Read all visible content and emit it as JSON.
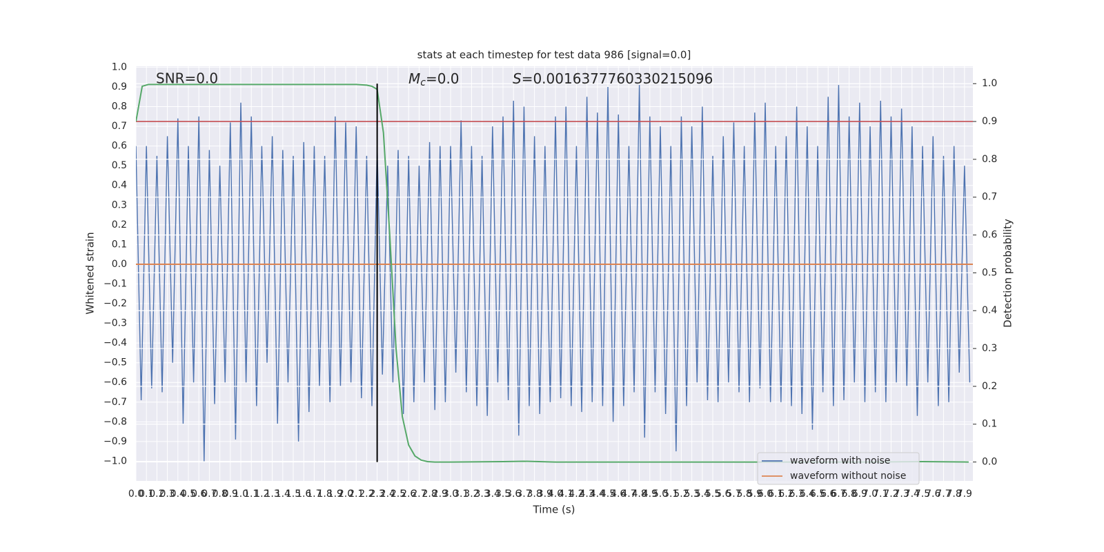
{
  "chart_data": {
    "type": "line",
    "title": "stats at each timestep for test data 986 [signal=0.0]",
    "xlabel": "Time (s)",
    "ylabel": "Whitened strain",
    "y2label": "Detection probability",
    "annotations": [
      {
        "text": "SNR=0.0"
      },
      {
        "symbol": "M",
        "subscript": "c",
        "text": "=0.0"
      },
      {
        "symbol": "S",
        "text": "=0.0016377760330215096"
      }
    ],
    "xlim": [
      0,
      7.98
    ],
    "ylim": [
      -1.1,
      1.005
    ],
    "y2lim": [
      -0.05,
      1.046
    ],
    "grid": true,
    "legend": "lower right",
    "xticks": [
      {
        "value": 0,
        "label": "0.0"
      },
      0.1,
      0.2,
      0.3,
      0.4,
      0.5,
      0.6,
      0.7,
      0.8,
      0.9,
      {
        "value": 1,
        "label": "1.0"
      },
      1.1,
      1.2,
      1.3,
      1.4,
      1.5,
      1.6,
      1.7,
      1.8,
      1.9,
      {
        "value": 2,
        "label": "2.0"
      },
      2.1,
      2.2,
      2.3,
      2.4,
      2.5,
      2.6,
      2.7,
      2.8,
      2.9,
      {
        "value": 3,
        "label": "3.0"
      },
      3.1,
      3.2,
      3.3,
      3.4,
      3.5,
      3.6,
      3.7,
      3.8,
      3.9,
      {
        "value": 4,
        "label": "4.0"
      },
      4.1,
      4.2,
      4.3,
      4.4,
      4.5,
      4.6,
      4.7,
      4.8,
      4.9,
      {
        "value": 5,
        "label": "5.0"
      },
      5.1,
      5.2,
      5.3,
      5.4,
      5.5,
      5.6,
      5.7,
      5.8,
      5.9,
      {
        "value": 6,
        "label": "6.0"
      },
      6.1,
      6.2,
      6.3,
      6.4,
      6.5,
      6.6,
      6.7,
      6.8,
      6.9,
      {
        "value": 7,
        "label": "7.0"
      },
      7.1,
      7.2,
      7.3,
      7.4,
      7.5,
      7.6,
      7.7,
      7.8,
      7.9
    ],
    "yticks": [
      {
        "value": -1,
        "label": "−1.0"
      },
      {
        "value": -0.9,
        "label": "−0.9"
      },
      {
        "value": -0.8,
        "label": "−0.8"
      },
      {
        "value": -0.7,
        "label": "−0.7"
      },
      {
        "value": -0.6,
        "label": "−0.6"
      },
      {
        "value": -0.5,
        "label": "−0.5"
      },
      {
        "value": -0.4,
        "label": "−0.4"
      },
      {
        "value": -0.3,
        "label": "−0.3"
      },
      {
        "value": -0.2,
        "label": "−0.2"
      },
      {
        "value": -0.1,
        "label": "−0.1"
      },
      {
        "value": 0,
        "label": "0.0"
      },
      0.1,
      0.2,
      0.3,
      0.4,
      0.5,
      0.6,
      0.7,
      0.8,
      0.9,
      {
        "value": 1,
        "label": "1.0"
      }
    ],
    "y2ticks": [
      {
        "value": 0,
        "label": "0.0"
      },
      0.1,
      0.2,
      0.3,
      0.4,
      0.5,
      0.6,
      0.7,
      0.8,
      0.9,
      {
        "value": 1,
        "label": "1.0"
      }
    ],
    "series": [
      {
        "name": "waveform with noise",
        "color": "#4c72b0",
        "x": [
          0,
          0.05,
          0.1,
          0.15,
          0.2,
          0.25,
          0.3,
          0.35,
          0.4,
          0.45,
          0.5,
          0.55,
          0.6,
          0.65,
          0.7,
          0.75,
          0.8,
          0.85,
          0.9,
          0.95,
          1,
          1.05,
          1.1,
          1.15,
          1.2,
          1.25,
          1.3,
          1.35,
          1.4,
          1.45,
          1.5,
          1.55,
          1.6,
          1.65,
          1.7,
          1.75,
          1.8,
          1.85,
          1.9,
          1.95,
          2,
          2.05,
          2.1,
          2.15,
          2.2,
          2.25,
          2.3,
          2.35,
          2.4,
          2.45,
          2.5,
          2.55,
          2.6,
          2.65,
          2.7,
          2.75,
          2.8,
          2.85,
          2.9,
          2.95,
          3,
          3.05,
          3.1,
          3.15,
          3.2,
          3.25,
          3.3,
          3.35,
          3.4,
          3.45,
          3.5,
          3.55,
          3.6,
          3.65,
          3.7,
          3.75,
          3.8,
          3.85,
          3.9,
          3.95,
          4,
          4.05,
          4.1,
          4.15,
          4.2,
          4.25,
          4.3,
          4.35,
          4.4,
          4.45,
          4.5,
          4.55,
          4.6,
          4.65,
          4.7,
          4.75,
          4.8,
          4.85,
          4.9,
          4.95,
          5,
          5.05,
          5.1,
          5.15,
          5.2,
          5.25,
          5.3,
          5.35,
          5.4,
          5.45,
          5.5,
          5.55,
          5.6,
          5.65,
          5.7,
          5.75,
          5.8,
          5.85,
          5.9,
          5.95,
          6,
          6.05,
          6.1,
          6.15,
          6.2,
          6.25,
          6.3,
          6.35,
          6.4,
          6.45,
          6.5,
          6.55,
          6.6,
          6.65,
          6.7,
          6.75,
          6.8,
          6.85,
          6.9,
          6.95,
          7,
          7.05,
          7.1,
          7.15,
          7.2,
          7.25,
          7.3,
          7.35,
          7.4,
          7.45,
          7.5,
          7.55,
          7.6,
          7.65,
          7.7,
          7.75,
          7.8,
          7.85,
          7.9,
          7.95
        ],
        "values": [
          0.6,
          -0.69,
          0.6,
          -0.63,
          0.55,
          -0.65,
          0.65,
          -0.5,
          0.74,
          -0.81,
          0.6,
          -0.6,
          0.75,
          -1.0,
          0.58,
          -0.71,
          0.5,
          -0.6,
          0.72,
          -0.89,
          0.82,
          -0.6,
          0.75,
          -0.72,
          0.6,
          -0.5,
          0.65,
          -0.81,
          0.58,
          -0.6,
          0.55,
          -0.9,
          0.62,
          -0.75,
          0.6,
          -0.62,
          0.55,
          -0.7,
          0.75,
          -0.62,
          0.72,
          -0.6,
          0.7,
          -0.68,
          0.55,
          -0.72,
          0.6,
          -0.56,
          0.5,
          -0.6,
          0.58,
          -0.76,
          0.55,
          -0.7,
          0.5,
          -0.6,
          0.62,
          -0.74,
          0.6,
          -0.7,
          0.6,
          -0.55,
          0.73,
          -0.65,
          0.6,
          -0.72,
          0.55,
          -0.77,
          0.7,
          -0.6,
          0.75,
          -0.69,
          0.83,
          -0.87,
          0.8,
          -0.72,
          0.65,
          -0.76,
          0.6,
          -0.7,
          0.75,
          -0.68,
          0.8,
          -0.72,
          0.6,
          -0.75,
          0.85,
          -0.7,
          0.77,
          -0.72,
          0.9,
          -0.8,
          0.76,
          -0.72,
          0.6,
          -0.65,
          0.91,
          -0.88,
          0.75,
          -0.65,
          0.7,
          -0.76,
          0.6,
          -0.95,
          0.75,
          -0.72,
          0.7,
          -0.6,
          0.8,
          -0.69,
          0.55,
          -0.7,
          0.65,
          -0.6,
          0.72,
          -0.65,
          0.6,
          -0.7,
          0.77,
          -0.63,
          0.82,
          -0.7,
          0.6,
          -0.7,
          0.65,
          -0.72,
          0.8,
          -0.76,
          0.7,
          -0.84,
          0.6,
          -0.65,
          0.85,
          -0.72,
          0.91,
          -0.69,
          0.75,
          -0.6,
          0.82,
          -0.7,
          0.7,
          -0.65,
          0.83,
          -0.7,
          0.75,
          -0.6,
          0.79,
          -0.62,
          0.7,
          -0.77,
          0.6,
          -0.6,
          0.65,
          -0.72,
          0.55,
          -0.7,
          0.6,
          -0.55,
          0.5,
          -0.6
        ]
      },
      {
        "name": "waveform without noise",
        "color": "#dd8452",
        "x": [
          0,
          7.98
        ],
        "values": [
          0,
          0
        ]
      }
    ],
    "probability": {
      "color": "#55a868",
      "axis": "y2",
      "x": [
        0,
        0.06,
        0.12,
        0.2,
        1.0,
        2.0,
        2.1,
        2.2,
        2.25,
        2.3,
        2.36,
        2.42,
        2.48,
        2.54,
        2.6,
        2.66,
        2.72,
        2.78,
        2.85,
        3.0,
        3.5,
        3.7,
        4.0,
        5.0,
        6.0,
        7.0,
        7.5,
        7.94
      ],
      "values": [
        0.9,
        0.993,
        0.998,
        0.998,
        0.998,
        0.998,
        0.998,
        0.996,
        0.993,
        0.985,
        0.87,
        0.6,
        0.3,
        0.12,
        0.045,
        0.016,
        0.005,
        0.001,
        0,
        0,
        0.001,
        0.002,
        0,
        0,
        0,
        0,
        0.001,
        0
      ]
    },
    "threshold": {
      "value": 0.9,
      "color": "#c44e52",
      "axis": "y2"
    },
    "marker": {
      "x": 2.3,
      "ymin": 0,
      "ymax": 1,
      "color": "#000000",
      "axis": "y2"
    }
  }
}
